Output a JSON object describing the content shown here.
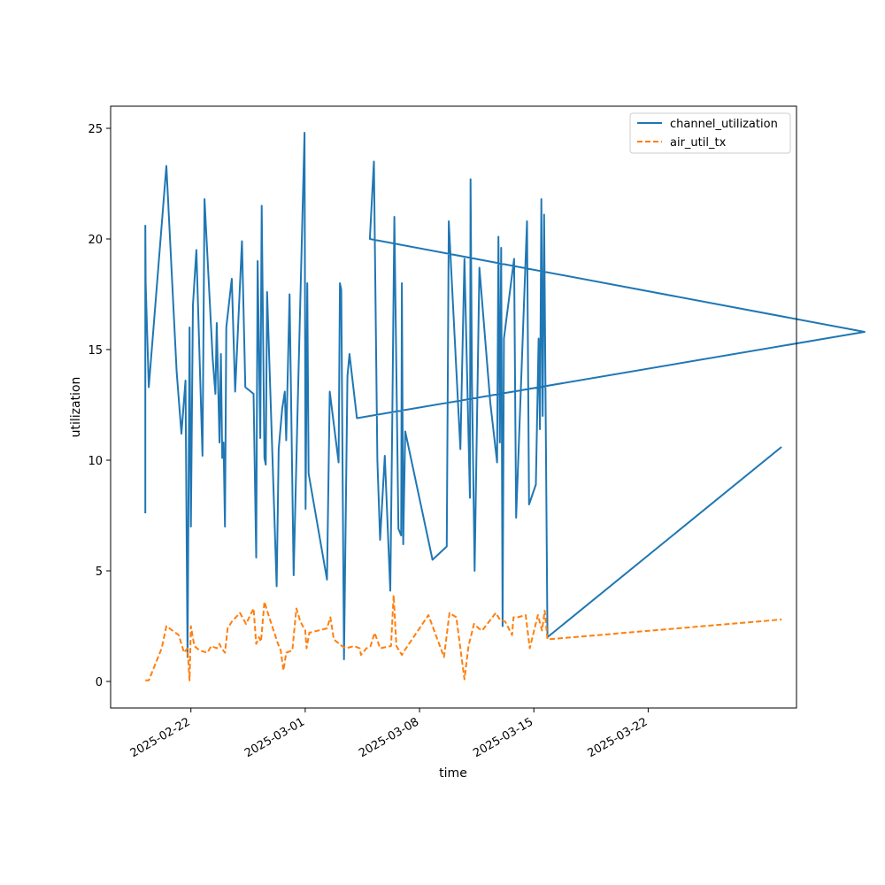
{
  "chart_data": {
    "type": "line",
    "title": "",
    "xlabel": "time",
    "ylabel": "utilization",
    "x_ticks": [
      "2025-02-22",
      "2025-03-01",
      "2025-03-08",
      "2025-03-15",
      "2025-03-22"
    ],
    "y_ticks": [
      "0",
      "5",
      "10",
      "15",
      "20",
      "25"
    ],
    "ylim": [
      -1.2,
      26.0
    ],
    "xlim": [
      "2025-02-17T02:00",
      "2025-03-31T02:00"
    ],
    "grid": false,
    "legend_position": "top-right",
    "series": [
      {
        "name": "channel_utilization",
        "color": "#1f77b4",
        "style": "solid",
        "points": [
          [
            "2025-02-19T05:00",
            7.6
          ],
          [
            "2025-02-19T05:00",
            20.6
          ],
          [
            "2025-02-19T05:30",
            18.0
          ],
          [
            "2025-02-19T10:00",
            13.3
          ],
          [
            "2025-02-19T16:00",
            15.6
          ],
          [
            "2025-02-20T12:00",
            23.3
          ],
          [
            "2025-02-21T03:00",
            14.0
          ],
          [
            "2025-02-21T10:00",
            11.2
          ],
          [
            "2025-02-21T16:00",
            13.6
          ],
          [
            "2025-02-21T19:00",
            1.1
          ],
          [
            "2025-02-21T22:00",
            16.0
          ],
          [
            "2025-02-22T00:00",
            7.0
          ],
          [
            "2025-02-22T03:00",
            17.0
          ],
          [
            "2025-02-22T08:00",
            19.5
          ],
          [
            "2025-02-22T17:00",
            10.2
          ],
          [
            "2025-02-22T20:00",
            21.8
          ],
          [
            "2025-02-23T08:00",
            14.6
          ],
          [
            "2025-02-23T12:00",
            13.0
          ],
          [
            "2025-02-23T14:00",
            16.2
          ],
          [
            "2025-02-23T18:00",
            10.8
          ],
          [
            "2025-02-23T20:00",
            14.8
          ],
          [
            "2025-02-23T22:00",
            10.1
          ],
          [
            "2025-02-24T00:00",
            10.8
          ],
          [
            "2025-02-24T02:00",
            7.0
          ],
          [
            "2025-02-24T04:00",
            16.0
          ],
          [
            "2025-02-24T12:00",
            18.2
          ],
          [
            "2025-02-24T17:00",
            13.1
          ],
          [
            "2025-02-25T03:00",
            19.9
          ],
          [
            "2025-02-25T08:00",
            13.3
          ],
          [
            "2025-02-25T20:00",
            13.0
          ],
          [
            "2025-02-26T00:00",
            5.6
          ],
          [
            "2025-02-26T02:00",
            19.0
          ],
          [
            "2025-02-26T06:00",
            11.0
          ],
          [
            "2025-02-26T08:00",
            21.5
          ],
          [
            "2025-02-26T12:00",
            10.1
          ],
          [
            "2025-02-26T14:00",
            9.8
          ],
          [
            "2025-02-26T16:00",
            17.6
          ],
          [
            "2025-02-27T06:00",
            4.3
          ],
          [
            "2025-02-27T09:00",
            10.5
          ],
          [
            "2025-02-27T14:00",
            12.3
          ],
          [
            "2025-02-27T18:00",
            13.1
          ],
          [
            "2025-02-27T20:00",
            10.9
          ],
          [
            "2025-02-28T01:00",
            17.5
          ],
          [
            "2025-02-28T07:00",
            4.8
          ],
          [
            "2025-02-28T13:00",
            12.5
          ],
          [
            "2025-02-28T23:00",
            24.8
          ],
          [
            "2025-03-01T00:30",
            7.8
          ],
          [
            "2025-03-01T03:00",
            18.0
          ],
          [
            "2025-03-01T05:00",
            9.4
          ],
          [
            "2025-03-02T08:00",
            4.6
          ],
          [
            "2025-03-02T12:00",
            13.1
          ],
          [
            "2025-03-03T01:00",
            9.9
          ],
          [
            "2025-03-03T03:00",
            18.0
          ],
          [
            "2025-03-03T05:00",
            17.7
          ],
          [
            "2025-03-03T09:00",
            1.0
          ],
          [
            "2025-03-03T14:00",
            13.8
          ],
          [
            "2025-03-03T17:00",
            14.8
          ],
          [
            "2025-03-04T04:00",
            11.9
          ],
          [
            "2025-04-04T06:00",
            15.8
          ],
          [
            "2025-03-04T23:00",
            20.0
          ],
          [
            "2025-03-05T05:00",
            23.5
          ],
          [
            "2025-03-05T10:00",
            10.0
          ],
          [
            "2025-03-05T14:00",
            6.4
          ],
          [
            "2025-03-05T21:00",
            10.2
          ],
          [
            "2025-03-06T05:00",
            4.1
          ],
          [
            "2025-03-06T08:00",
            12.0
          ],
          [
            "2025-03-06T11:00",
            21.0
          ],
          [
            "2025-03-06T17:00",
            6.9
          ],
          [
            "2025-03-06T21:00",
            6.6
          ],
          [
            "2025-03-06T22:00",
            18.0
          ],
          [
            "2025-03-07T00:00",
            6.2
          ],
          [
            "2025-03-07T03:00",
            11.3
          ],
          [
            "2025-03-08T19:00",
            5.5
          ],
          [
            "2025-03-09T16:00",
            6.1
          ],
          [
            "2025-03-09T19:00",
            20.8
          ],
          [
            "2025-03-10T00:00",
            17.7
          ],
          [
            "2025-03-10T12:00",
            10.5
          ],
          [
            "2025-03-10T18:00",
            19.1
          ],
          [
            "2025-03-11T02:00",
            8.3
          ],
          [
            "2025-03-11T03:00",
            22.7
          ],
          [
            "2025-03-11T05:00",
            13.5
          ],
          [
            "2025-03-11T09:00",
            5.0
          ],
          [
            "2025-03-11T16:00",
            18.7
          ],
          [
            "2025-03-12T08:00",
            12.6
          ],
          [
            "2025-03-12T18:00",
            9.9
          ],
          [
            "2025-03-12T20:00",
            20.1
          ],
          [
            "2025-03-12T22:00",
            10.8
          ],
          [
            "2025-03-13T00:00",
            19.6
          ],
          [
            "2025-03-13T02:00",
            2.5
          ],
          [
            "2025-03-13T04:00",
            15.5
          ],
          [
            "2025-03-13T19:00",
            19.1
          ],
          [
            "2025-03-13T22:00",
            7.4
          ],
          [
            "2025-03-14T14:00",
            20.8
          ],
          [
            "2025-03-14T17:00",
            8.0
          ],
          [
            "2025-03-15T03:00",
            8.9
          ],
          [
            "2025-03-15T07:00",
            15.5
          ],
          [
            "2025-03-15T09:00",
            11.4
          ],
          [
            "2025-03-15T11:00",
            21.8
          ],
          [
            "2025-03-15T13:00",
            12.0
          ],
          [
            "2025-03-15T15:00",
            21.1
          ],
          [
            "2025-03-15T20:00",
            2.0
          ],
          [
            "2025-03-30T04:00",
            10.6
          ]
        ]
      },
      {
        "name": "air_util_tx",
        "color": "#ff7f0e",
        "style": "dashed",
        "points": [
          [
            "2025-02-19T05:00",
            0.05
          ],
          [
            "2025-02-19T10:00",
            0.05
          ],
          [
            "2025-02-20T05:00",
            1.5
          ],
          [
            "2025-02-20T12:00",
            2.5
          ],
          [
            "2025-02-21T06:00",
            2.1
          ],
          [
            "2025-02-21T14:00",
            1.3
          ],
          [
            "2025-02-21T19:00",
            1.5
          ],
          [
            "2025-02-21T22:00",
            0.05
          ],
          [
            "2025-02-22T00:00",
            2.5
          ],
          [
            "2025-02-22T05:00",
            1.6
          ],
          [
            "2025-02-22T13:00",
            1.4
          ],
          [
            "2025-02-23T00:00",
            1.3
          ],
          [
            "2025-02-23T06:00",
            1.6
          ],
          [
            "2025-02-23T14:00",
            1.5
          ],
          [
            "2025-02-23T18:00",
            1.7
          ],
          [
            "2025-02-23T21:00",
            1.5
          ],
          [
            "2025-02-24T02:00",
            1.3
          ],
          [
            "2025-02-24T06:00",
            2.4
          ],
          [
            "2025-02-24T12:00",
            2.7
          ],
          [
            "2025-02-25T00:00",
            3.1
          ],
          [
            "2025-02-25T09:00",
            2.6
          ],
          [
            "2025-02-25T20:00",
            3.3
          ],
          [
            "2025-02-26T00:00",
            1.7
          ],
          [
            "2025-02-26T04:00",
            2.0
          ],
          [
            "2025-02-26T07:00",
            1.8
          ],
          [
            "2025-02-26T12:00",
            3.6
          ],
          [
            "2025-02-26T18:00",
            3.0
          ],
          [
            "2025-02-27T08:00",
            1.7
          ],
          [
            "2025-02-27T12:00",
            1.4
          ],
          [
            "2025-02-27T16:00",
            0.5
          ],
          [
            "2025-02-27T20:00",
            1.3
          ],
          [
            "2025-02-28T05:00",
            1.4
          ],
          [
            "2025-02-28T11:00",
            3.3
          ],
          [
            "2025-02-28T17:00",
            2.7
          ],
          [
            "2025-03-01T00:00",
            2.3
          ],
          [
            "2025-03-01T02:00",
            1.5
          ],
          [
            "2025-03-01T06:00",
            2.2
          ],
          [
            "2025-03-02T08:00",
            2.4
          ],
          [
            "2025-03-02T13:00",
            2.9
          ],
          [
            "2025-03-02T18:00",
            1.9
          ],
          [
            "2025-03-03T06:00",
            1.6
          ],
          [
            "2025-03-03T12:00",
            1.5
          ],
          [
            "2025-03-04T00:00",
            1.6
          ],
          [
            "2025-03-04T08:00",
            1.5
          ],
          [
            "2025-03-04T10:00",
            1.2
          ],
          [
            "2025-03-04T18:00",
            1.5
          ],
          [
            "2025-03-05T00:00",
            1.6
          ],
          [
            "2025-03-05T06:00",
            2.2
          ],
          [
            "2025-03-05T14:00",
            1.5
          ],
          [
            "2025-03-06T06:00",
            1.6
          ],
          [
            "2025-03-06T10:00",
            3.9
          ],
          [
            "2025-03-06T14:00",
            1.6
          ],
          [
            "2025-03-06T22:00",
            1.2
          ],
          [
            "2025-03-07T02:00",
            1.4
          ],
          [
            "2025-03-08T13:00",
            3.0
          ],
          [
            "2025-03-09T12:00",
            1.1
          ],
          [
            "2025-03-09T20:00",
            3.1
          ],
          [
            "2025-03-10T06:00",
            2.9
          ],
          [
            "2025-03-10T18:00",
            0.1
          ],
          [
            "2025-03-11T00:00",
            1.6
          ],
          [
            "2025-03-11T08:00",
            2.6
          ],
          [
            "2025-03-11T15:00",
            2.4
          ],
          [
            "2025-03-11T20:00",
            2.3
          ],
          [
            "2025-03-12T16:00",
            3.1
          ],
          [
            "2025-03-12T22:00",
            2.8
          ],
          [
            "2025-03-13T06:00",
            2.7
          ],
          [
            "2025-03-13T16:00",
            2.1
          ],
          [
            "2025-03-13T18:00",
            2.9
          ],
          [
            "2025-03-14T00:00",
            2.9
          ],
          [
            "2025-03-14T12:00",
            3.0
          ],
          [
            "2025-03-14T18:00",
            1.5
          ],
          [
            "2025-03-15T06:00",
            3.0
          ],
          [
            "2025-03-15T12:00",
            2.3
          ],
          [
            "2025-03-15T16:00",
            3.2
          ],
          [
            "2025-03-15T20:00",
            1.9
          ],
          [
            "2025-03-30T04:00",
            2.8
          ]
        ]
      }
    ]
  }
}
